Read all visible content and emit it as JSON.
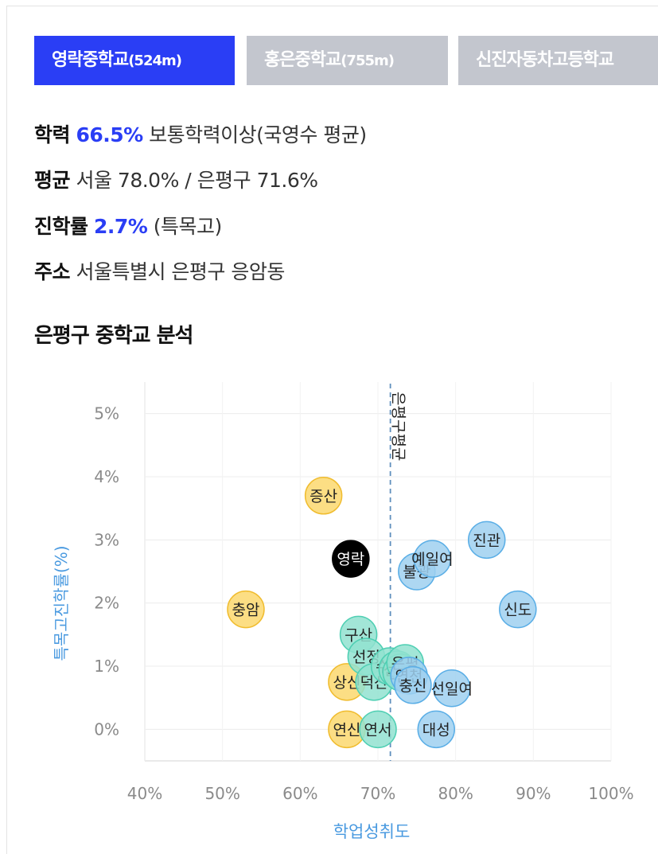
{
  "tabs": [
    {
      "name": "영락중학교",
      "dist": "(524m)",
      "active": true
    },
    {
      "name": "홍은중학교",
      "dist": "(755m)",
      "active": false
    },
    {
      "name": "신진자동차고등학교",
      "dist": "",
      "active": false
    }
  ],
  "info": {
    "academic_label": "학력",
    "academic_value": "66.5%",
    "academic_desc": "보통학력이상(국영수 평균)",
    "avg_label": "평균",
    "avg_value": "서울 78.0% / 은평구 71.6%",
    "rate_label": "진학률",
    "rate_value": "2.7%",
    "rate_desc": "(특목고)",
    "addr_label": "주소",
    "addr_value": "서울특별시 은평구 응암동"
  },
  "section_title": "은평구 중학교 분석",
  "colors": {
    "accent": "#2a3ef5",
    "blue_fill": "#9fd0f0",
    "blue_stroke": "#5aaee6",
    "teal_fill": "#92e2d0",
    "teal_stroke": "#4fcfb3",
    "yellow_fill": "#fbd86e",
    "yellow_stroke": "#f0bc2e",
    "highlight": "#000000"
  },
  "chart_data": {
    "type": "scatter",
    "xlabel": "학업성취도",
    "ylabel": "특목고진학률(%)",
    "xlim": [
      40,
      100
    ],
    "ylim": [
      -0.5,
      5.5
    ],
    "x_ticks": [
      40,
      50,
      60,
      70,
      80,
      90,
      100
    ],
    "y_ticks": [
      0,
      1,
      2,
      3,
      4,
      5
    ],
    "x_tick_labels": [
      "40%",
      "50%",
      "60%",
      "70%",
      "80%",
      "90%",
      "100%"
    ],
    "y_tick_labels": [
      "0%",
      "1%",
      "2%",
      "3%",
      "4%",
      "5%"
    ],
    "reference_line": {
      "x": 71.6,
      "label": "은평구평균"
    },
    "points": [
      {
        "name": "증산",
        "x": 63.0,
        "y": 3.7,
        "group": "yellow"
      },
      {
        "name": "충암",
        "x": 53.0,
        "y": 1.9,
        "group": "yellow"
      },
      {
        "name": "상신",
        "x": 66.0,
        "y": 0.75,
        "group": "yellow"
      },
      {
        "name": "연신",
        "x": 66.0,
        "y": 0.0,
        "group": "yellow"
      },
      {
        "name": "구산",
        "x": 67.5,
        "y": 1.5,
        "group": "teal"
      },
      {
        "name": "선정",
        "x": 68.5,
        "y": 1.15,
        "group": "teal"
      },
      {
        "name": "덕산",
        "x": 69.5,
        "y": 0.75,
        "group": "teal"
      },
      {
        "name": "연서",
        "x": 70.0,
        "y": 0.0,
        "group": "teal"
      },
      {
        "name": "수리",
        "x": 71.5,
        "y": 1.0,
        "group": "teal"
      },
      {
        "name": "신사",
        "x": 72.5,
        "y": 0.95,
        "group": "teal"
      },
      {
        "name": "진흥",
        "x": 73.0,
        "y": 0.9,
        "group": "teal"
      },
      {
        "name": "은평",
        "x": 73.5,
        "y": 1.05,
        "group": "teal"
      },
      {
        "name": "연천",
        "x": 74.0,
        "y": 0.85,
        "group": "blue"
      },
      {
        "name": "충신",
        "x": 74.5,
        "y": 0.7,
        "group": "blue"
      },
      {
        "name": "불광",
        "x": 75.0,
        "y": 2.5,
        "group": "blue"
      },
      {
        "name": "예일여",
        "x": 77.0,
        "y": 2.7,
        "group": "blue"
      },
      {
        "name": "선일여",
        "x": 79.5,
        "y": 0.65,
        "group": "blue"
      },
      {
        "name": "대성",
        "x": 77.5,
        "y": 0.0,
        "group": "blue"
      },
      {
        "name": "진관",
        "x": 84.0,
        "y": 3.0,
        "group": "blue"
      },
      {
        "name": "신도",
        "x": 88.0,
        "y": 1.9,
        "group": "blue"
      },
      {
        "name": "영락",
        "x": 66.5,
        "y": 2.7,
        "group": "highlight"
      }
    ]
  }
}
